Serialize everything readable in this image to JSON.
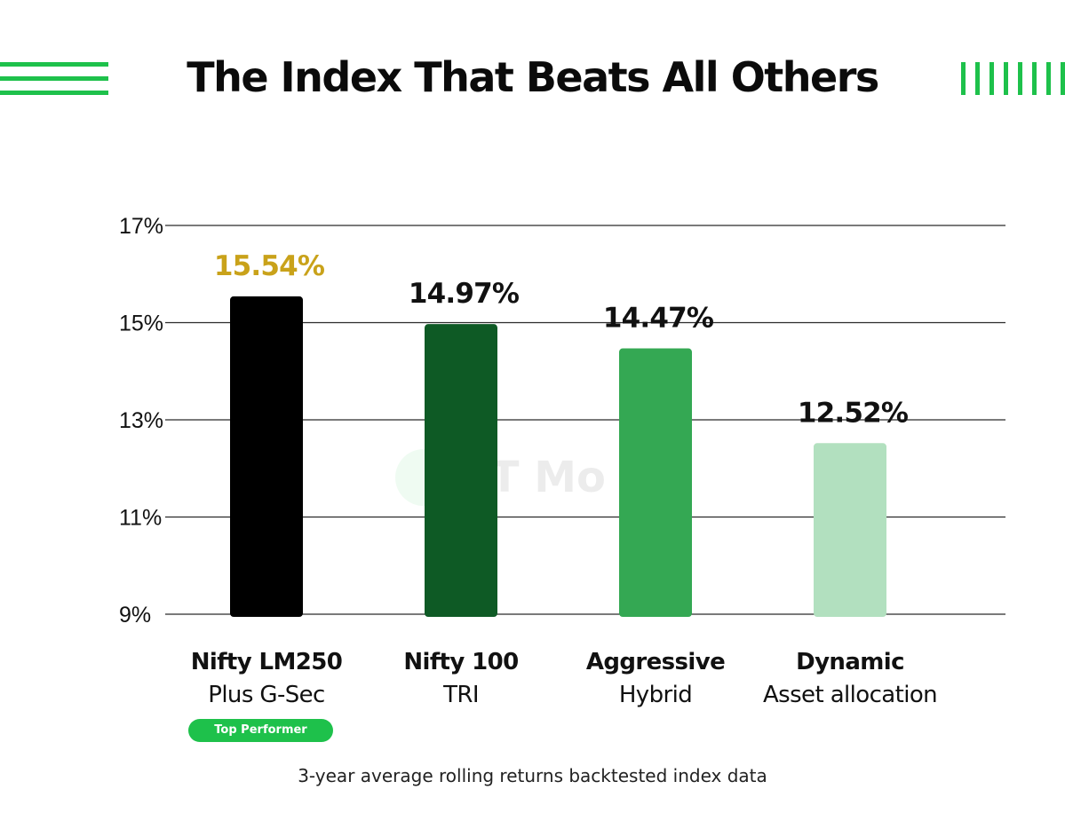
{
  "title": "The Index That Beats All Others",
  "watermark": "ET Mo",
  "badge": "Top Performer",
  "footnote": "3-year average rolling returns backtested index data",
  "colors": {
    "accent": "#1ec14b",
    "highlight_label": "#c9a21a",
    "grid": "#2a2a2a"
  },
  "chart_data": {
    "type": "bar",
    "title": "The Index That Beats All Others",
    "xlabel": "",
    "ylabel": "",
    "ylim": [
      9,
      17
    ],
    "yticks": [
      9,
      11,
      13,
      15,
      17
    ],
    "ytick_labels": [
      "9%",
      "11%",
      "13%",
      "15%",
      "17%"
    ],
    "grid": true,
    "categories": [
      {
        "main": "Nifty LM250",
        "sub": "Plus G-Sec"
      },
      {
        "main": "Nifty 100",
        "sub": "TRI"
      },
      {
        "main": "Aggressive",
        "sub": "Hybrid"
      },
      {
        "main": "Dynamic",
        "sub": "Asset allocation"
      }
    ],
    "values": [
      15.54,
      14.97,
      14.47,
      12.52
    ],
    "value_labels": [
      "15.54%",
      "14.97%",
      "14.47%",
      "12.52%"
    ],
    "bar_colors": [
      "#000000",
      "#0e5a25",
      "#34a853",
      "#b2e0bf"
    ],
    "label_colors": [
      "#c9a21a",
      "#111111",
      "#111111",
      "#111111"
    ]
  }
}
